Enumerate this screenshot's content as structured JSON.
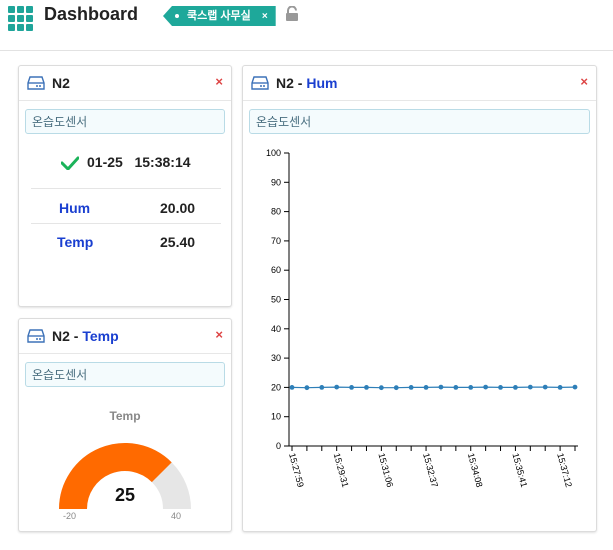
{
  "header": {
    "title": "Dashboard",
    "tag_label": "쿡스랩 사무실",
    "tag_close": "×"
  },
  "panels": {
    "device": {
      "title": "N2",
      "sensor": "온습도센서",
      "status_date": "01-25",
      "status_time": "15:38:14",
      "rows": [
        {
          "label": "Hum",
          "value": "20.00"
        },
        {
          "label": "Temp",
          "value": "25.40"
        }
      ],
      "close": "×"
    },
    "temp": {
      "title": "N2",
      "title_suffix": "Temp",
      "sensor": "온습도센서",
      "close": "×",
      "gauge": {
        "title": "Temp",
        "value": "25",
        "min": "-20",
        "max": "40",
        "value_num": 25,
        "min_num": -20,
        "max_num": 40,
        "fill_color": "#ff6a00",
        "track_color": "#e6e6e6"
      }
    },
    "hum": {
      "title": "N2",
      "title_suffix": "Hum",
      "sensor": "온습도센서",
      "close": "×"
    }
  },
  "chart_data": {
    "type": "line",
    "ylim": [
      0,
      100
    ],
    "y_ticks": [
      0,
      10,
      20,
      30,
      40,
      50,
      60,
      70,
      80,
      90,
      100
    ],
    "x_tick_labels": [
      "15:27:59",
      "15:29:31",
      "15:31:06",
      "15:32:37",
      "15:34:08",
      "15:35:41",
      "15:37:12"
    ],
    "values": [
      20,
      19.9,
      20,
      20.1,
      20,
      20,
      19.9,
      19.9,
      20,
      20,
      20.1,
      20,
      20,
      20.1,
      20,
      20,
      20.1,
      20.1,
      20,
      20.1
    ],
    "series_color": "#2e7fb8"
  }
}
